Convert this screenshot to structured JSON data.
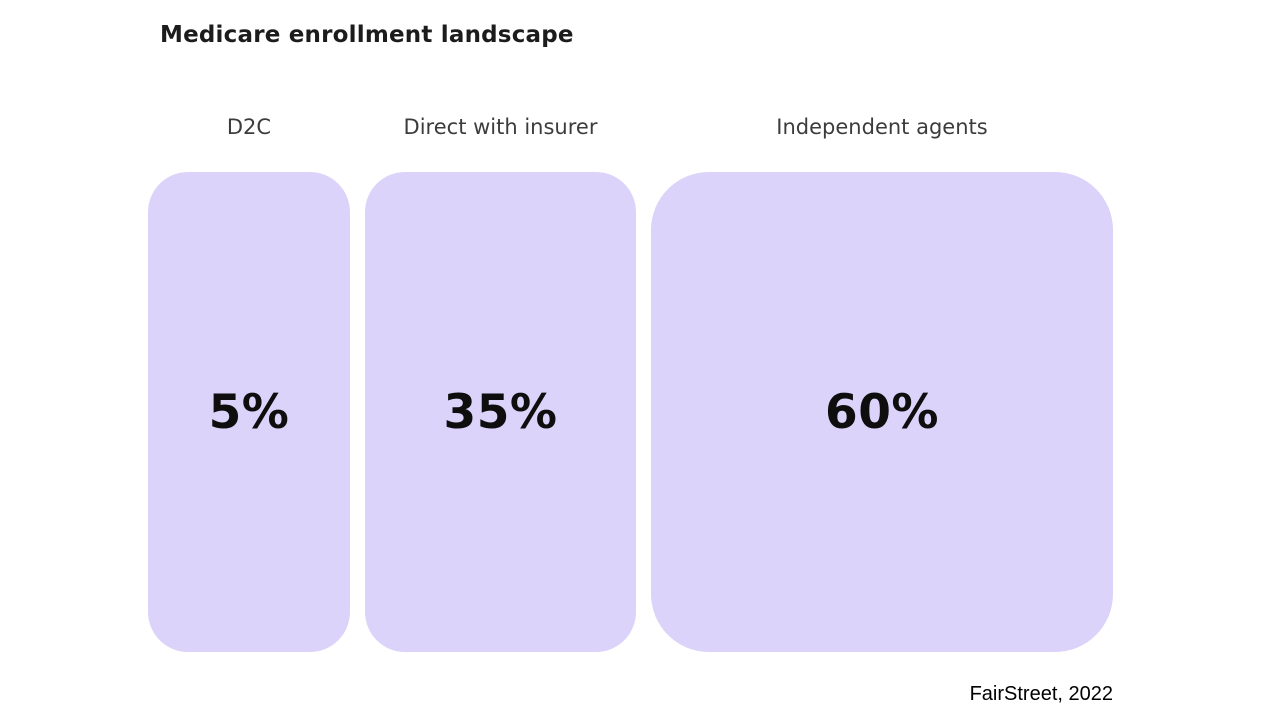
{
  "title": "Medicare enrollment landscape",
  "source": "FairStreet, 2022",
  "colors": {
    "box_fill": "#DBD3FA",
    "title_text": "#1c1c1c",
    "label_text": "#3c3c3c",
    "value_text": "#0e0e0e",
    "background": "#ffffff"
  },
  "chart_data": {
    "type": "bar",
    "title": "Medicare enrollment landscape",
    "categories": [
      "D2C",
      "Direct with insurer",
      "Independent agents"
    ],
    "values": [
      5,
      35,
      60
    ],
    "value_labels": [
      "5%",
      "35%",
      "60%"
    ],
    "unit": "percent of enrollments",
    "source": "FairStreet, 2022",
    "legend_position": "none",
    "axes_visible": false,
    "grid": false,
    "layout": "three rounded rectangles side by side, equal height, value label centered inside each, category label centered above each"
  }
}
